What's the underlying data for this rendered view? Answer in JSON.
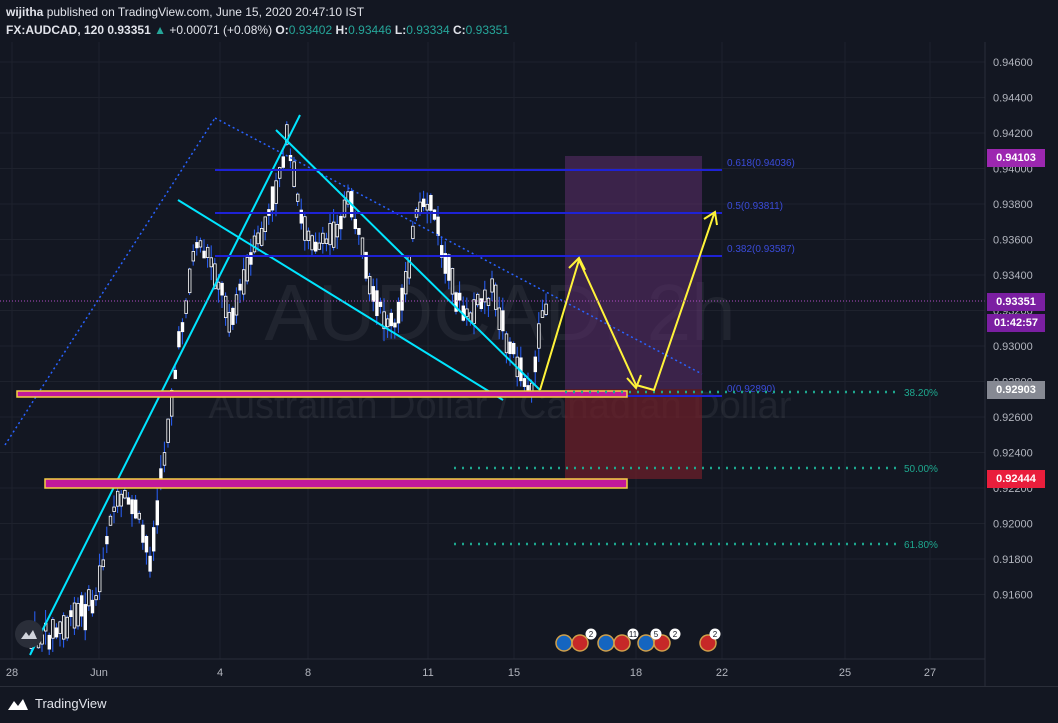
{
  "header": {
    "publisher": "wijitha",
    "published_text": "published on TradingView.com, June 15, 2020 20:47:10 IST",
    "symbol": "FX:AUDCAD, 120",
    "last_price": "0.93351",
    "change_arrow": "▲",
    "change": "+0.00071 (+0.08%)",
    "open_label": "O:",
    "open": "0.93402",
    "high_label": "H:",
    "high": "0.93446",
    "low_label": "L:",
    "low": "0.93334",
    "close_label": "C:",
    "close": "0.93351"
  },
  "watermark": {
    "symbol": "AUDCAD, 2h",
    "description": "Australian Dollar / Canadian Dollar"
  },
  "price_axis": {
    "ticks": [
      "0.94600",
      "0.94400",
      "0.94200",
      "0.94000",
      "0.93800",
      "0.93600",
      "0.93400",
      "0.93200",
      "0.93000",
      "0.92800",
      "0.92600",
      "0.92400",
      "0.92200",
      "0.92000",
      "0.91800",
      "0.91600"
    ],
    "tags": {
      "target": "0.94103",
      "current": "0.93351",
      "countdown": "01:42:57",
      "entry": "0.92903",
      "stop": "0.92444"
    }
  },
  "time_axis": {
    "labels": [
      "28",
      "Jun",
      "4",
      "8",
      "11",
      "15",
      "18",
      "22",
      "25",
      "27"
    ]
  },
  "fib_levels": [
    {
      "label": "0.618(0.94036)",
      "value": 0.94036
    },
    {
      "label": "0.5(0.93811)",
      "value": 0.93811
    },
    {
      "label": "0.382(0.93587)",
      "value": 0.93587
    },
    {
      "label": "0(0.92890)",
      "value": 0.9289
    }
  ],
  "retracement_levels": [
    {
      "label": "38.20%",
      "value": 0.92896
    },
    {
      "label": "50.00%",
      "value": 0.92495
    },
    {
      "label": "61.80%",
      "value": 0.92095
    }
  ],
  "events": {
    "badges": [
      "2",
      "11",
      "5",
      "2",
      "2"
    ]
  },
  "colors": {
    "background": "#131722",
    "candle": "#ffffff",
    "wick": "#2962ff",
    "trendline": "#00e5ff",
    "fib_line": "#1e22d6",
    "support_fill": "#c2189b",
    "support_border": "#f5d142",
    "arrow": "#fff33a",
    "target_zone": "#5c2d6b",
    "stop_zone": "#6b1f2a",
    "dotted": "#1ea88f",
    "tag_target": "#9c27b0",
    "tag_current": "#7b1fa2",
    "tag_entry": "#868993",
    "tag_stop": "#e91e3c"
  },
  "footer": {
    "brand": "TradingView"
  }
}
